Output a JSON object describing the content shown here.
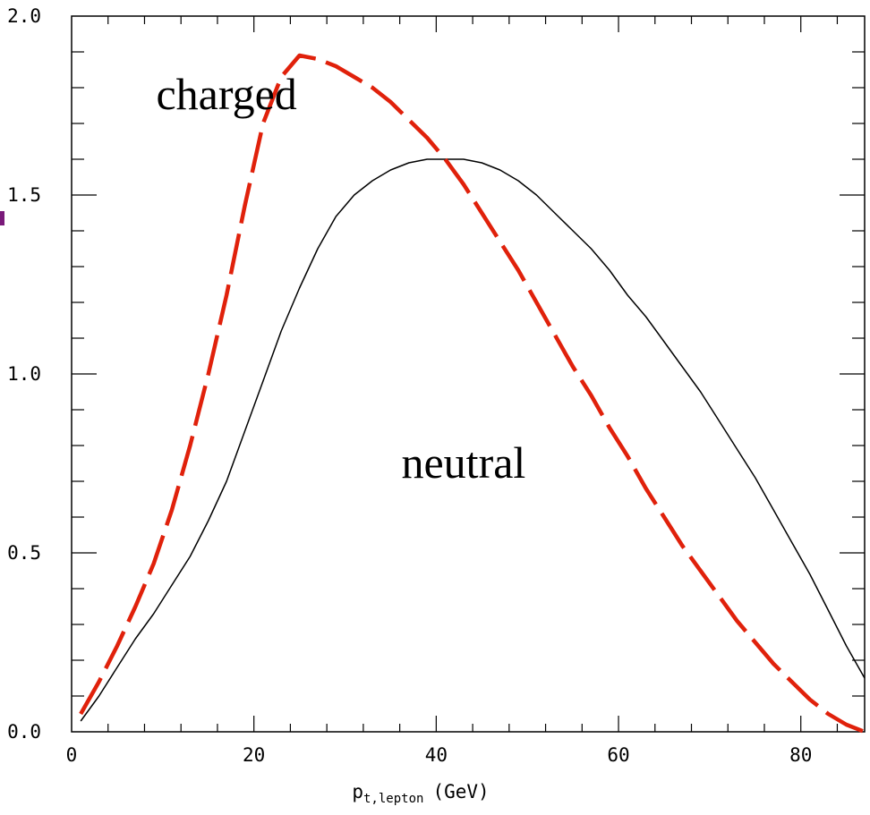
{
  "chart_data": {
    "type": "line",
    "xlim": [
      0,
      87
    ],
    "ylim": [
      0,
      2.0
    ],
    "xticks": [
      0,
      20,
      40,
      60,
      80
    ],
    "xtick_labels": [
      "0",
      "20",
      "40",
      "60",
      "80"
    ],
    "yticks": [
      0,
      0.5,
      1.0,
      1.5,
      2.0
    ],
    "ytick_labels": [
      "0.0",
      "0.5",
      "1.0",
      "1.5",
      "2.0"
    ],
    "x_minor_step": 4,
    "y_minor_step": 0.1,
    "xlabel": {
      "main": "p",
      "subscript": "t,lepton",
      "unit": "(GeV)"
    },
    "grid": false,
    "series": [
      {
        "name": "charged",
        "color": "#e0210b",
        "style": "dashed",
        "x": [
          1,
          3,
          5,
          7,
          9,
          11,
          13,
          15,
          17,
          19,
          21,
          23,
          25,
          27,
          29,
          31,
          33,
          35,
          37,
          39,
          41,
          43,
          45,
          47,
          49,
          51,
          53,
          55,
          57,
          59,
          61,
          63,
          65,
          67,
          69,
          71,
          73,
          75,
          77,
          79,
          81,
          83,
          85,
          87
        ],
        "y": [
          0.05,
          0.14,
          0.24,
          0.35,
          0.47,
          0.62,
          0.8,
          1.0,
          1.22,
          1.47,
          1.7,
          1.83,
          1.89,
          1.88,
          1.86,
          1.83,
          1.8,
          1.76,
          1.71,
          1.66,
          1.6,
          1.53,
          1.45,
          1.37,
          1.29,
          1.2,
          1.11,
          1.02,
          0.94,
          0.85,
          0.77,
          0.68,
          0.6,
          0.52,
          0.45,
          0.38,
          0.31,
          0.25,
          0.19,
          0.14,
          0.09,
          0.05,
          0.02,
          0.0
        ]
      },
      {
        "name": "neutral",
        "color": "#000000",
        "style": "solid",
        "x": [
          1,
          3,
          5,
          7,
          9,
          11,
          13,
          15,
          17,
          19,
          21,
          23,
          25,
          27,
          29,
          31,
          33,
          35,
          37,
          39,
          41,
          43,
          45,
          47,
          49,
          51,
          53,
          55,
          57,
          59,
          61,
          63,
          65,
          67,
          69,
          71,
          73,
          75,
          77,
          79,
          81,
          83,
          85,
          87
        ],
        "y": [
          0.03,
          0.1,
          0.18,
          0.26,
          0.33,
          0.41,
          0.49,
          0.59,
          0.7,
          0.84,
          0.98,
          1.12,
          1.24,
          1.35,
          1.44,
          1.5,
          1.54,
          1.57,
          1.59,
          1.6,
          1.6,
          1.6,
          1.59,
          1.57,
          1.54,
          1.5,
          1.45,
          1.4,
          1.35,
          1.29,
          1.22,
          1.16,
          1.09,
          1.02,
          0.95,
          0.87,
          0.79,
          0.71,
          0.62,
          0.53,
          0.44,
          0.34,
          0.24,
          0.15
        ]
      }
    ],
    "annotations": [
      {
        "text": "charged",
        "x": 17,
        "y": 1.74
      },
      {
        "text": "neutral",
        "x": 43,
        "y": 0.71
      }
    ]
  }
}
